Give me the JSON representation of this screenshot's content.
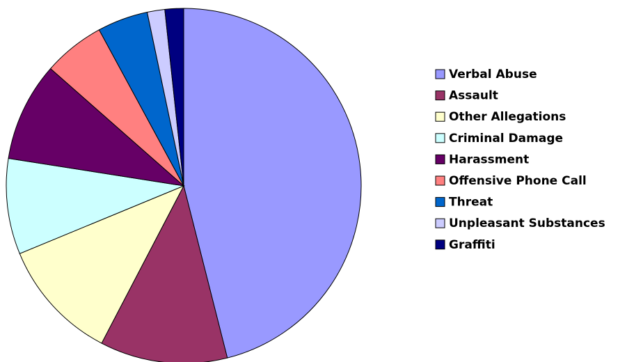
{
  "chart_data": {
    "type": "pie",
    "categories": [
      "Verbal Abuse",
      "Assault",
      "Other Allegations",
      "Criminal Damage",
      "Harassment",
      "Offensive Phone Call",
      "Threat",
      "Unpleasant Substances",
      "Graffiti"
    ],
    "values": [
      46,
      11.6,
      11.1,
      8.7,
      9,
      5.6,
      4.6,
      1.6,
      1.7
    ],
    "colors": [
      "#9999ff",
      "#993366",
      "#ffffcc",
      "#ccffff",
      "#660066",
      "#ff8080",
      "#0066cc",
      "#ccccff",
      "#000080"
    ],
    "legend": "right"
  }
}
